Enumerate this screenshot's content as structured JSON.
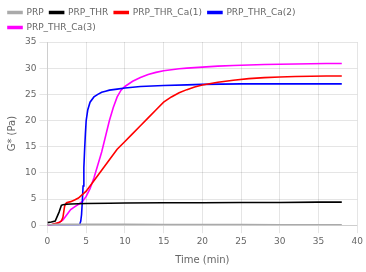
{
  "chart_data": {
    "type": "line",
    "xlabel": "Time (min)",
    "ylabel": "G* (Pa)",
    "xlim": [
      0,
      40
    ],
    "ylim": [
      0,
      35
    ],
    "xticks": [
      0,
      5,
      10,
      15,
      20,
      25,
      30,
      35,
      40
    ],
    "yticks": [
      0,
      5,
      10,
      15,
      20,
      25,
      30,
      35
    ],
    "grid": true,
    "legend": "upper left",
    "series": [
      {
        "name": "PRP",
        "color": "#aaaaaa",
        "x": [
          0,
          0.5,
          1,
          2,
          3,
          5,
          10,
          15,
          20,
          25,
          30,
          35,
          38
        ],
        "values": [
          0.1,
          0.1,
          0.15,
          0.15,
          0.15,
          0.15,
          0.15,
          0.12,
          0.12,
          0.12,
          0.1,
          0.1,
          0.1
        ]
      },
      {
        "name": "PRP_THR",
        "color": "#000000",
        "x": [
          0,
          0.5,
          1,
          1.5,
          1.8,
          2.0,
          2.5,
          3,
          4,
          5,
          8,
          10,
          15,
          20,
          25,
          30,
          35,
          38
        ],
        "values": [
          0.5,
          0.6,
          0.8,
          2.5,
          3.8,
          3.9,
          4.0,
          4.05,
          4.1,
          4.15,
          4.2,
          4.25,
          4.3,
          4.3,
          4.35,
          4.35,
          4.4,
          4.4
        ]
      },
      {
        "name": "PRP_THR_Ca(1)",
        "color": "#ff0000",
        "x": [
          0,
          0.5,
          1,
          1.5,
          1.8,
          2.0,
          2.1,
          2.2,
          2.3,
          2.4,
          2.5,
          3.0,
          3.5,
          4.0,
          5.0,
          6,
          7,
          8,
          9,
          10,
          11,
          12,
          13,
          14,
          15,
          16,
          17,
          18,
          19,
          20,
          22,
          24,
          26,
          28,
          30,
          32,
          34,
          36,
          38
        ],
        "values": [
          0.0,
          0.1,
          0.3,
          0.5,
          0.8,
          1.5,
          2.5,
          3.5,
          4.0,
          4.2,
          4.3,
          4.5,
          4.8,
          5.2,
          6.5,
          8.5,
          10.5,
          12.5,
          14.5,
          16.0,
          17.5,
          19.0,
          20.5,
          22.0,
          23.5,
          24.5,
          25.3,
          25.9,
          26.4,
          26.8,
          27.3,
          27.7,
          28.0,
          28.2,
          28.3,
          28.4,
          28.45,
          28.5,
          28.5
        ]
      },
      {
        "name": "PRP_THR_Ca(2)",
        "color": "#0000ff",
        "x": [
          0,
          0.5,
          1,
          1.5,
          2,
          2.5,
          3,
          3.5,
          4.0,
          4.1,
          4.2,
          4.3,
          4.4,
          4.5,
          4.6,
          4.7,
          4.8,
          4.9,
          5.0,
          5.2,
          5.5,
          6,
          6.5,
          7,
          7.5,
          8,
          9,
          10,
          12,
          15,
          18,
          20,
          25,
          30,
          35,
          38
        ],
        "values": [
          0.0,
          0.05,
          0.05,
          0.05,
          0.05,
          0.05,
          0.05,
          0.05,
          0.05,
          0.1,
          0.3,
          0.8,
          2.0,
          4.5,
          7.5,
          11.0,
          14.5,
          17.5,
          20.0,
          22.0,
          23.5,
          24.5,
          25.0,
          25.4,
          25.6,
          25.8,
          26.0,
          26.2,
          26.5,
          26.7,
          26.8,
          26.9,
          27.0,
          27.0,
          27.0,
          27.0
        ]
      },
      {
        "name": "PRP_THR_Ca(3)",
        "color": "#ff00ff",
        "x": [
          0,
          0.5,
          1,
          1.5,
          2,
          2.5,
          3,
          3.5,
          3.8,
          4.0,
          4.2,
          4.5,
          5.0,
          5.5,
          6.0,
          6.5,
          7.0,
          7.5,
          8.0,
          8.5,
          9.0,
          9.5,
          10,
          11,
          12,
          13,
          14,
          15,
          16,
          17,
          18,
          19,
          20,
          22,
          24,
          26,
          28,
          30,
          32,
          34,
          36,
          38
        ],
        "values": [
          0.0,
          0.1,
          0.2,
          0.5,
          1.0,
          2.0,
          3.0,
          3.5,
          3.8,
          4.0,
          4.2,
          4.5,
          5.5,
          7.0,
          9.0,
          11.5,
          14.0,
          17.0,
          20.0,
          22.5,
          24.5,
          25.8,
          26.5,
          27.5,
          28.2,
          28.8,
          29.2,
          29.5,
          29.7,
          29.9,
          30.0,
          30.1,
          30.2,
          30.4,
          30.5,
          30.6,
          30.7,
          30.75,
          30.8,
          30.85,
          30.9,
          30.9
        ]
      }
    ]
  }
}
